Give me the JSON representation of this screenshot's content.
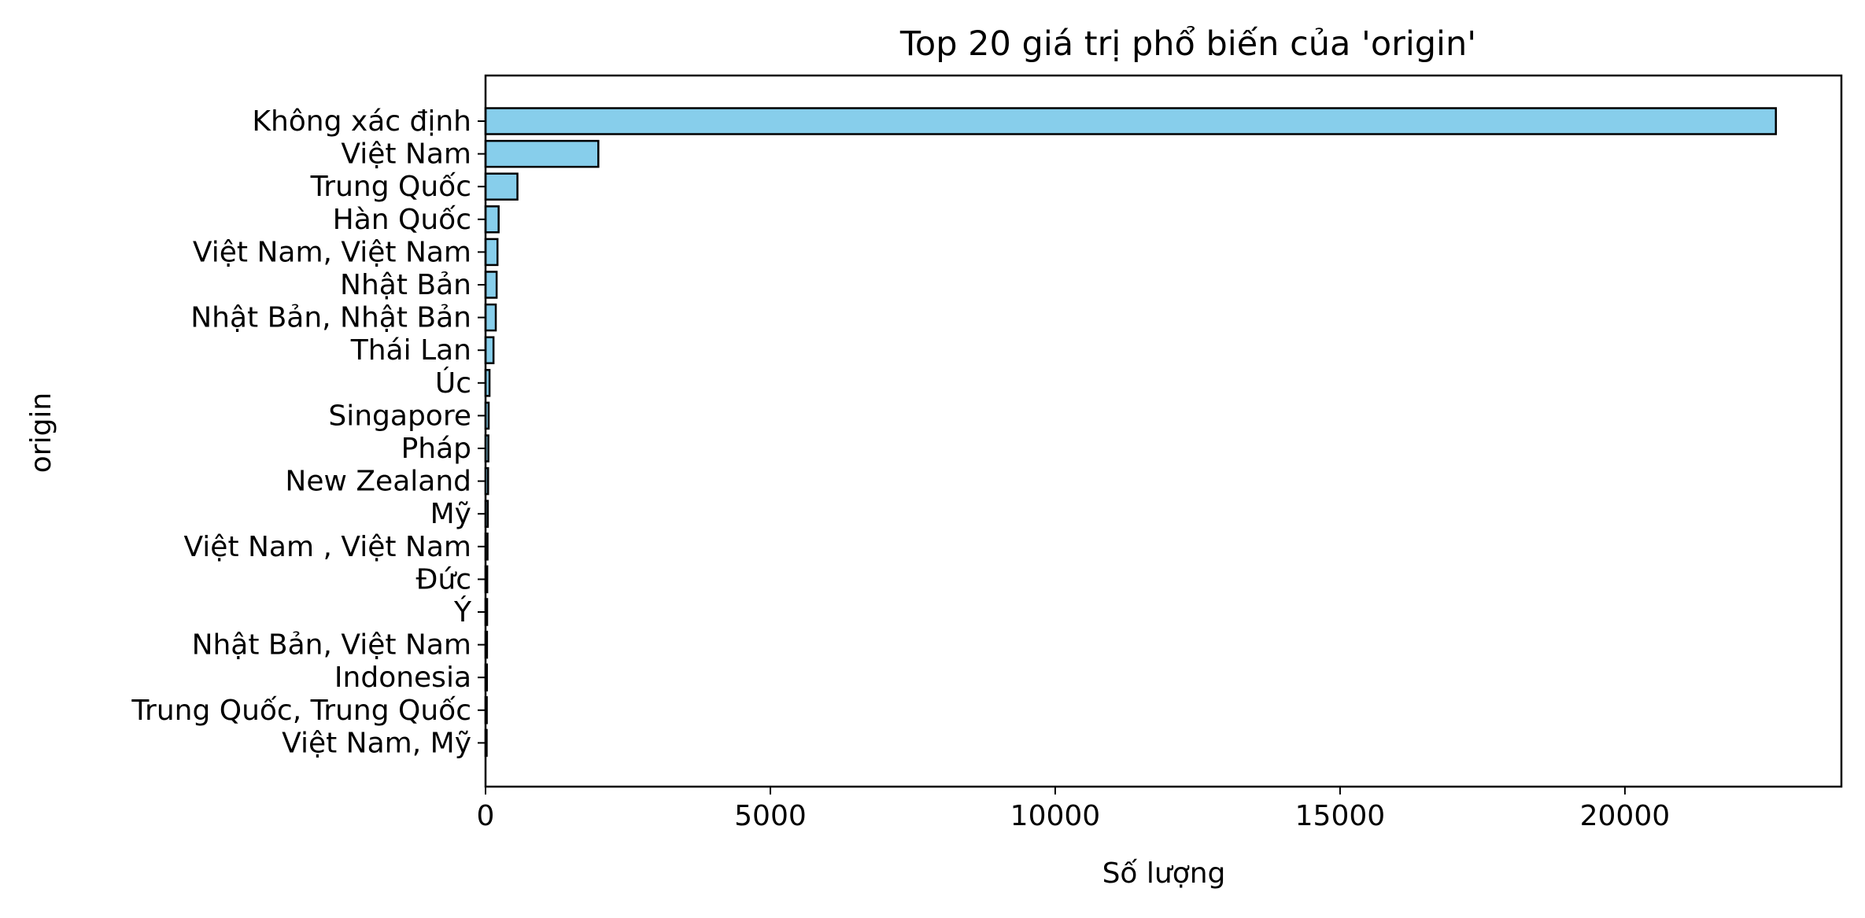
{
  "chart_data": {
    "type": "bar",
    "orientation": "horizontal",
    "title": "Top 20 giá trị phổ biến của 'origin'",
    "xlabel": "Số lượng",
    "ylabel": "origin",
    "categories": [
      "Không xác định",
      "Việt Nam",
      "Trung Quốc",
      "Hàn Quốc",
      "Việt Nam, Việt Nam",
      "Nhật Bản",
      "Nhật Bản, Nhật Bản",
      "Thái Lan",
      "Úc",
      "Singapore",
      "Pháp",
      "New Zealand",
      "Mỹ",
      "Việt Nam , Việt Nam",
      "Đức",
      "Ý",
      "Nhật Bản, Việt Nam",
      "Indonesia",
      "Trung Quốc, Trung Quốc",
      "Việt Nam, Mỹ"
    ],
    "values": [
      22650,
      1980,
      560,
      230,
      210,
      195,
      180,
      140,
      70,
      55,
      50,
      45,
      40,
      35,
      30,
      28,
      26,
      24,
      22,
      20
    ],
    "xlim": [
      0,
      23800
    ],
    "xticks": [
      0,
      5000,
      10000,
      15000,
      20000
    ],
    "xtick_labels": [
      "0",
      "5000",
      "10000",
      "15000",
      "20000"
    ],
    "grid": false,
    "legend": "none",
    "colors": {
      "bar_fill": "#87ceeb",
      "bar_edge": "#000000",
      "axis": "#000000",
      "background": "#ffffff"
    }
  }
}
